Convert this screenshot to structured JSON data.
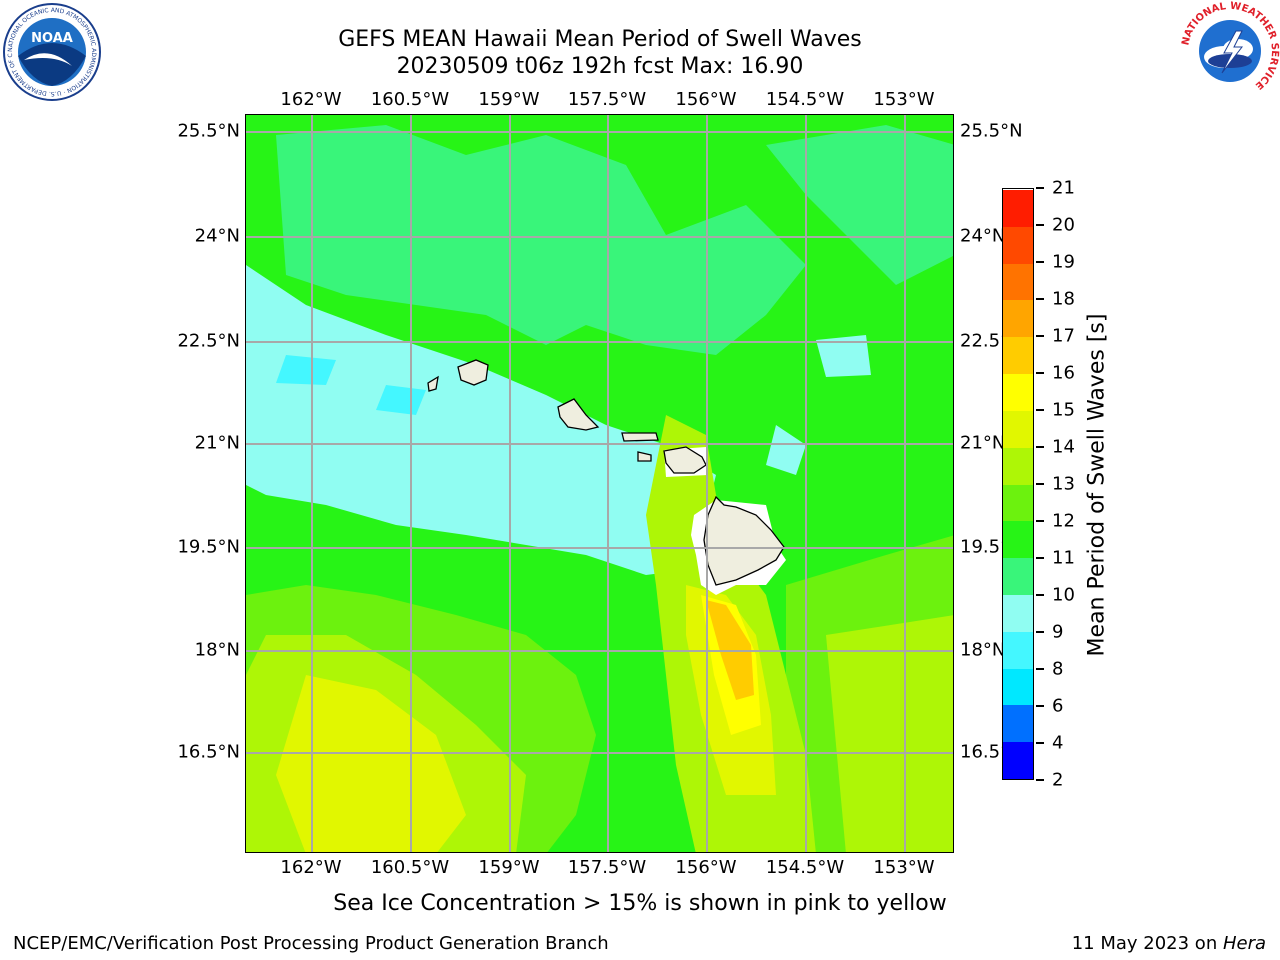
{
  "title": {
    "line1": "GEFS MEAN Hawaii Mean Period of Swell Waves",
    "line2": "20230509 t06z 192h fcst   Max: 16.90"
  },
  "chart_data": {
    "type": "heatmap",
    "title": "GEFS MEAN Hawaii Mean Period of Swell Waves",
    "subtitle": "20230509 t06z 192h fcst   Max: 16.90",
    "colorbar_label": "Mean Period of Swell Waves [s]",
    "colorbar_levels": [
      2,
      4,
      6,
      8,
      9,
      10,
      11,
      12,
      13,
      14,
      15,
      16,
      17,
      18,
      19,
      20,
      21
    ],
    "colorbar_colors": [
      "#0000ff",
      "#0070ff",
      "#00e8ff",
      "#44f7ff",
      "#90fdf2",
      "#39f57a",
      "#27f416",
      "#6cf20e",
      "#aef606",
      "#e1f700",
      "#ffff00",
      "#ffcc00",
      "#ffa500",
      "#ff7300",
      "#ff4900",
      "#ff1d00"
    ],
    "lon_ticks": [
      "162°W",
      "160.5°W",
      "159°W",
      "157.5°W",
      "156°W",
      "154.5°W",
      "153°W"
    ],
    "lat_ticks": [
      "25.5°N",
      "24°N",
      "22.5°N",
      "21°N",
      "19.5°N",
      "18°N",
      "16.5°N"
    ],
    "lon_range": [
      -163.0,
      -152.6
    ],
    "lat_range": [
      15.0,
      25.7
    ],
    "max_value": 16.9,
    "grid": true
  },
  "footnote": "Sea Ice Concentration > 15% is shown in pink to yellow",
  "credit": "NCEP/EMC/Verification Post Processing Product Generation Branch",
  "date_prefix": "11 May 2023 on ",
  "date_machine": "Hera",
  "logos": {
    "noaa_text": "NOAA",
    "noaa_ring": "NATIONAL OCEANIC AND ATMOSPHERIC ADMINISTRATION · U.S. DEPARTMENT OF COMMERCE",
    "nws_ring": "NATIONAL WEATHER SERVICE"
  }
}
